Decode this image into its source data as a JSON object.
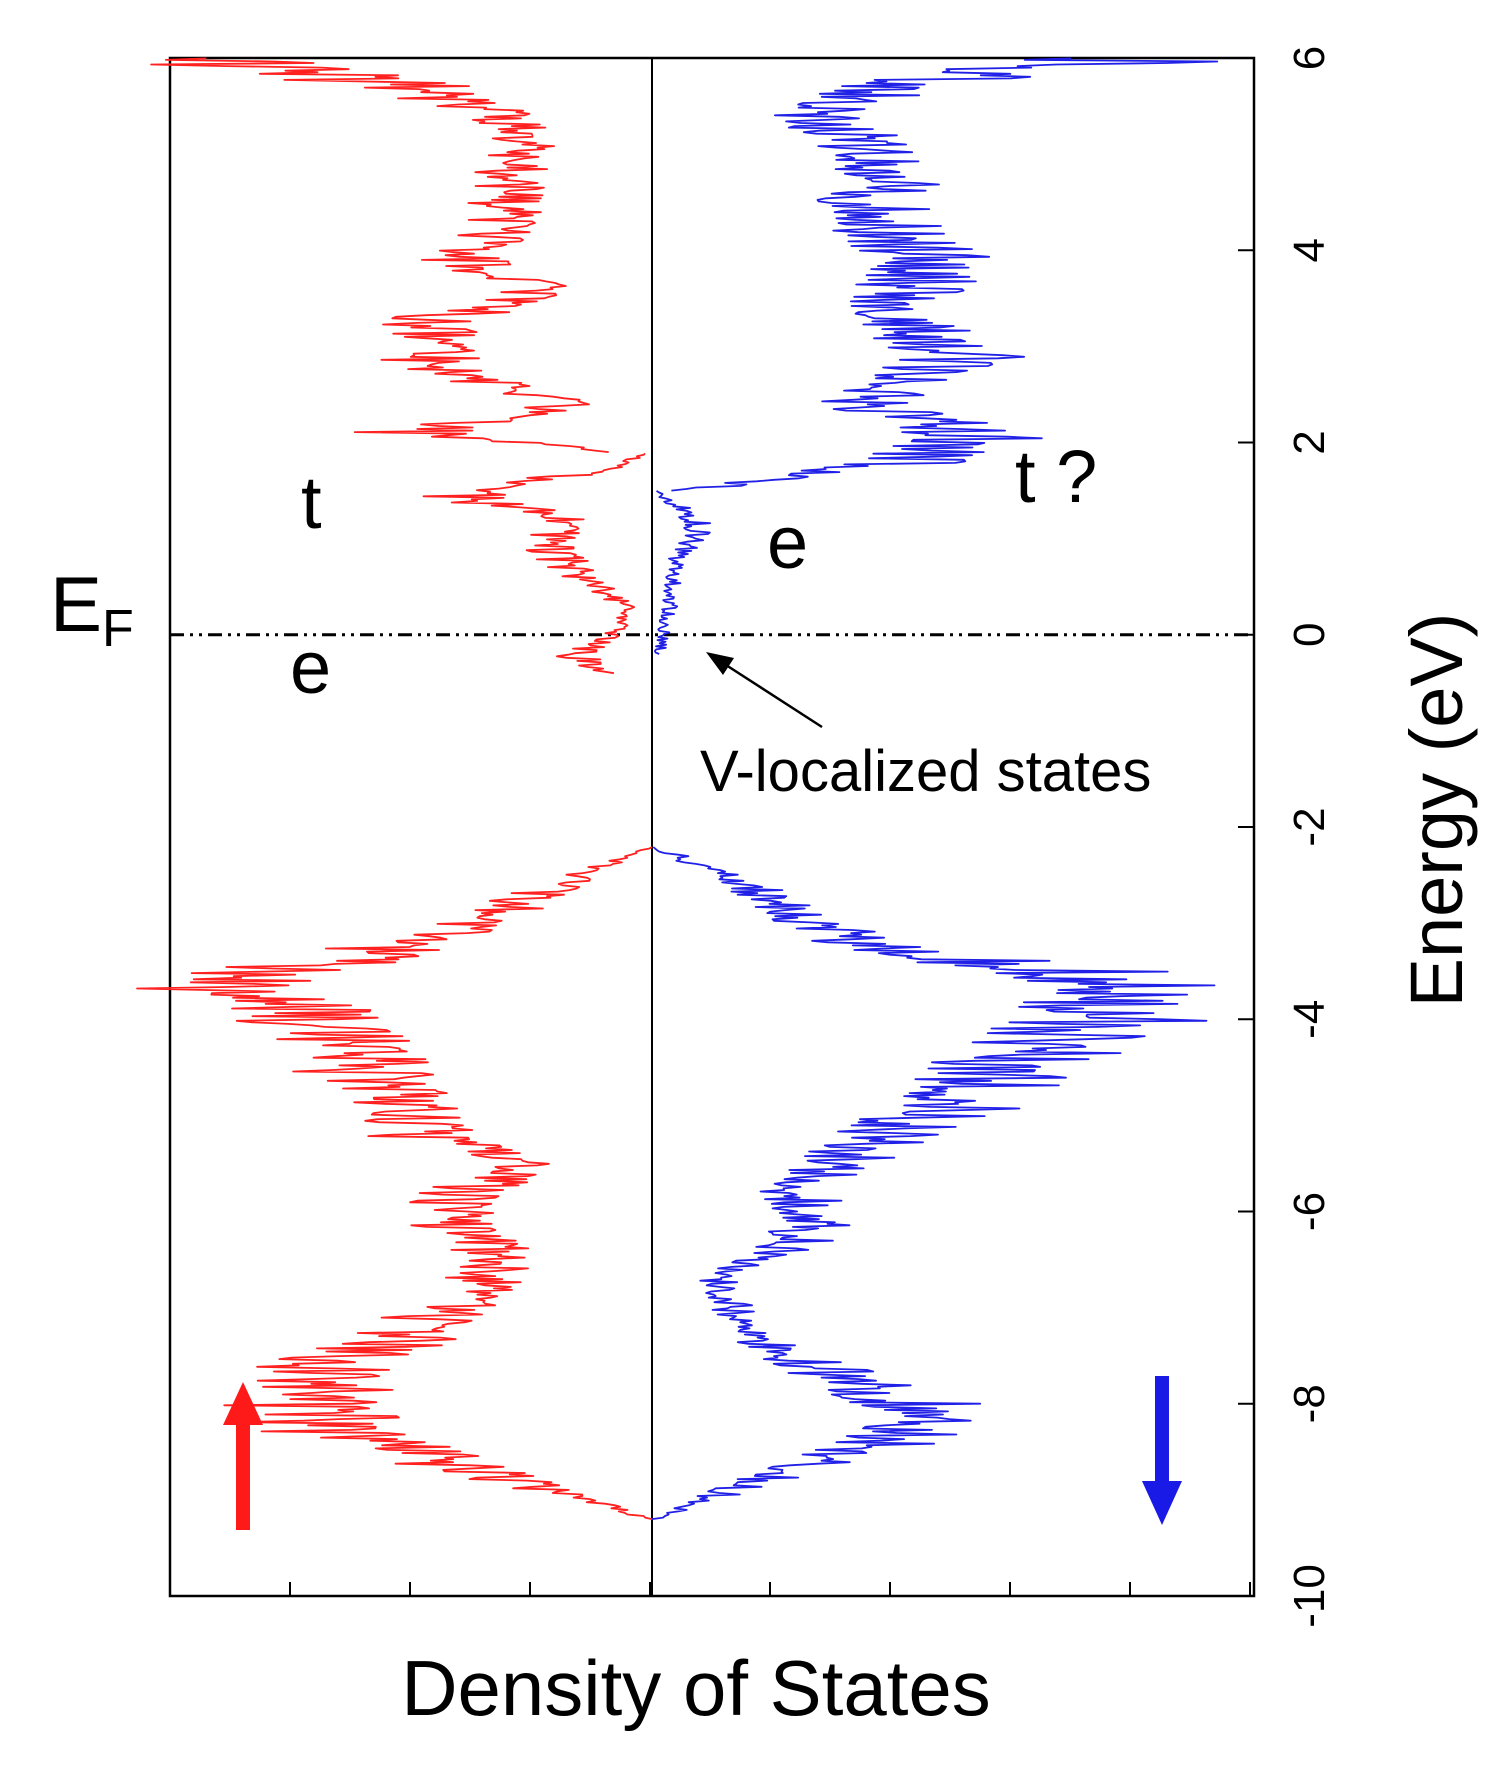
{
  "chart_data": {
    "type": "line",
    "orientation": "energy axis vertical (rotated), spin-up plotted left, spin-down plotted right",
    "xlabel": "Density of States",
    "ylabel": "Energy (eV)",
    "ylim": [
      -10,
      6
    ],
    "yticks": [
      -10,
      -8,
      -6,
      -4,
      -2,
      0,
      2,
      4,
      6
    ],
    "ytick_labels": [
      "-10",
      "-8",
      "-6",
      "-4",
      "-2",
      "0",
      "2",
      "4",
      "6"
    ],
    "xlim": [
      -4,
      5
    ],
    "grid": false,
    "fermi_level": 0,
    "fermi_label": "E",
    "fermi_label_sub": "F",
    "series": [
      {
        "color": "#ff2020",
        "bands": [
          {
            "e0": -9.2,
            "e1": -2.2,
            "profile": [
              [
                -9.2,
                0
              ],
              [
                -8.9,
                -0.8
              ],
              [
                -8.6,
                -1.6
              ],
              [
                -8.3,
                -2.4
              ],
              [
                -8.0,
                -2.6
              ],
              [
                -7.6,
                -2.6
              ],
              [
                -7.3,
                -1.9
              ],
              [
                -7.0,
                -1.6
              ],
              [
                -6.7,
                -1.3
              ],
              [
                -6.4,
                -1.2
              ],
              [
                -6.1,
                -1.6
              ],
              [
                -5.8,
                -1.4
              ],
              [
                -5.5,
                -1.0
              ],
              [
                -5.2,
                -1.8
              ],
              [
                -4.9,
                -1.9
              ],
              [
                -4.6,
                -2.1
              ],
              [
                -4.3,
                -2.3
              ],
              [
                -4.0,
                -2.6
              ],
              [
                -3.7,
                -3.2
              ],
              [
                -3.5,
                -2.9
              ],
              [
                -3.2,
                -1.8
              ],
              [
                -2.9,
                -1.2
              ],
              [
                -2.6,
                -0.7
              ],
              [
                -2.2,
                0
              ]
            ]
          },
          {
            "e0": -0.4,
            "e1": 1.9,
            "profile": [
              [
                -0.4,
                -0.4
              ],
              [
                -0.2,
                -0.6
              ],
              [
                0.0,
                -0.3
              ],
              [
                0.3,
                -0.2
              ],
              [
                0.6,
                -0.5
              ],
              [
                0.9,
                -0.8
              ],
              [
                1.2,
                -0.7
              ],
              [
                1.5,
                -1.6
              ],
              [
                1.7,
                -0.4
              ],
              [
                1.9,
                0
              ]
            ]
          },
          {
            "e0": 1.9,
            "e1": 6.0,
            "profile": [
              [
                1.9,
                -0.3
              ],
              [
                2.1,
                -1.8
              ],
              [
                2.4,
                -0.6
              ],
              [
                2.7,
                -1.6
              ],
              [
                3.0,
                -1.8
              ],
              [
                3.3,
                -1.6
              ],
              [
                3.6,
                -0.8
              ],
              [
                3.9,
                -1.5
              ],
              [
                4.2,
                -1.2
              ],
              [
                4.5,
                -1.1
              ],
              [
                4.8,
                -1.1
              ],
              [
                5.1,
                -0.9
              ],
              [
                5.4,
                -1.2
              ],
              [
                5.7,
                -1.8
              ],
              [
                6.0,
                -3.6
              ]
            ]
          }
        ]
      },
      {
        "color": "#2020e6",
        "bands": [
          {
            "e0": -9.2,
            "e1": -2.2,
            "profile": [
              [
                -9.2,
                0
              ],
              [
                -8.9,
                0.6
              ],
              [
                -8.6,
                1.3
              ],
              [
                -8.3,
                2.0
              ],
              [
                -8.0,
                2.0
              ],
              [
                -7.6,
                1.2
              ],
              [
                -7.3,
                0.8
              ],
              [
                -7.0,
                0.6
              ],
              [
                -6.7,
                0.5
              ],
              [
                -6.4,
                1.0
              ],
              [
                -6.1,
                1.3
              ],
              [
                -5.8,
                1.1
              ],
              [
                -5.5,
                1.4
              ],
              [
                -5.2,
                1.8
              ],
              [
                -4.9,
                2.3
              ],
              [
                -4.6,
                2.6
              ],
              [
                -4.3,
                2.9
              ],
              [
                -4.0,
                3.4
              ],
              [
                -3.7,
                3.8
              ],
              [
                -3.5,
                3.1
              ],
              [
                -3.2,
                1.6
              ],
              [
                -2.9,
                1.1
              ],
              [
                -2.6,
                0.7
              ],
              [
                -2.2,
                0
              ]
            ]
          },
          {
            "e0": -0.2,
            "e1": 1.5,
            "profile": [
              [
                -0.2,
                0.05
              ],
              [
                0.2,
                0.1
              ],
              [
                0.5,
                0.15
              ],
              [
                0.8,
                0.2
              ],
              [
                1.1,
                0.35
              ],
              [
                1.3,
                0.25
              ],
              [
                1.5,
                0
              ]
            ]
          },
          {
            "e0": 1.5,
            "e1": 6.0,
            "profile": [
              [
                1.5,
                0.2
              ],
              [
                1.8,
                2.1
              ],
              [
                2.1,
                2.5
              ],
              [
                2.4,
                1.6
              ],
              [
                2.7,
                2.2
              ],
              [
                3.0,
                2.3
              ],
              [
                3.3,
                1.9
              ],
              [
                3.6,
                2.0
              ],
              [
                3.9,
                2.2
              ],
              [
                4.2,
                1.8
              ],
              [
                4.5,
                1.6
              ],
              [
                4.8,
                1.9
              ],
              [
                5.1,
                1.6
              ],
              [
                5.4,
                1.2
              ],
              [
                5.7,
                1.8
              ],
              [
                6.0,
                3.6
              ]
            ]
          }
        ]
      }
    ],
    "annotations": [
      "t",
      "e",
      "e",
      "t ?",
      "V-localized states"
    ]
  }
}
